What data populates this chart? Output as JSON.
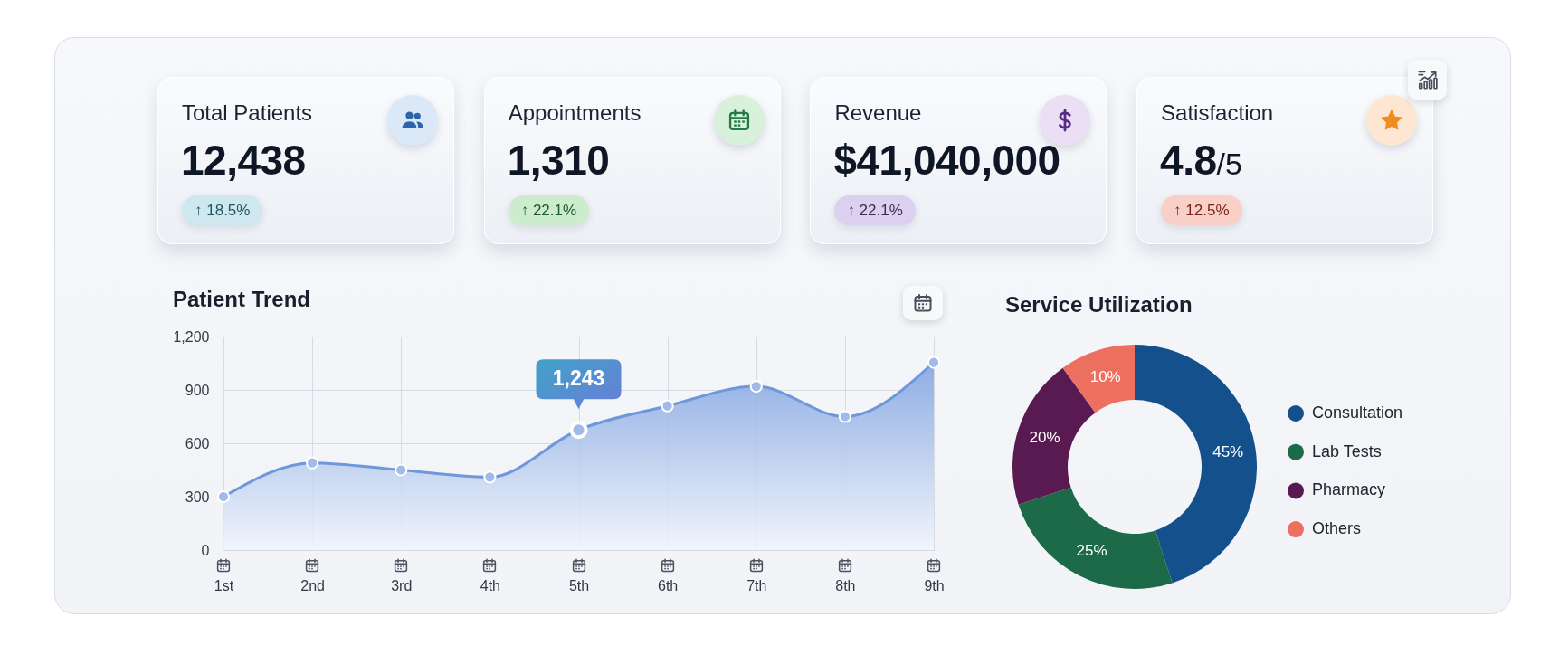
{
  "chart_data": [
    {
      "type": "other",
      "title": "Total Patients",
      "annotations": [
        "12,438",
        "↑ 18.5%"
      ]
    },
    {
      "type": "other",
      "title": "Appointments",
      "annotations": [
        "1,310",
        "↑ 22.1%"
      ]
    },
    {
      "type": "other",
      "title": "Revenue",
      "annotations": [
        "$41,040,000",
        "↑ 22.1%"
      ]
    },
    {
      "type": "other",
      "title": "Satisfaction",
      "annotations": [
        "4.8/5",
        "↑ 12.5%"
      ]
    },
    {
      "type": "area",
      "title": "Patient Trend",
      "categories": [
        "1st",
        "2nd",
        "3rd",
        "4th",
        "5th",
        "6th",
        "7th",
        "8th",
        "9th"
      ],
      "values": [
        300,
        490,
        450,
        410,
        675,
        810,
        920,
        750,
        1055
      ],
      "color": "#6e97dc",
      "ylim": [
        0,
        1200
      ],
      "yticks": [
        0,
        300,
        600,
        900,
        {
          "value": 1200,
          "label": "1,200"
        }
      ],
      "grid": true,
      "marker": "circle",
      "annotations": [
        {
          "text": "1,243",
          "x": "5th",
          "y": 675
        }
      ]
    },
    {
      "type": "donut",
      "title": "Service Utilization",
      "categories": [
        "Consultation",
        "Lab Tests",
        "Pharmacy",
        "Others"
      ],
      "values": [
        45,
        25,
        20,
        10
      ],
      "colors": [
        "#14508c",
        "#1c6a47",
        "#581a50",
        "#ec6f5f"
      ],
      "value_labels": [
        "45%",
        "25%",
        "20%",
        "10%"
      ],
      "legend": "right"
    }
  ]
}
